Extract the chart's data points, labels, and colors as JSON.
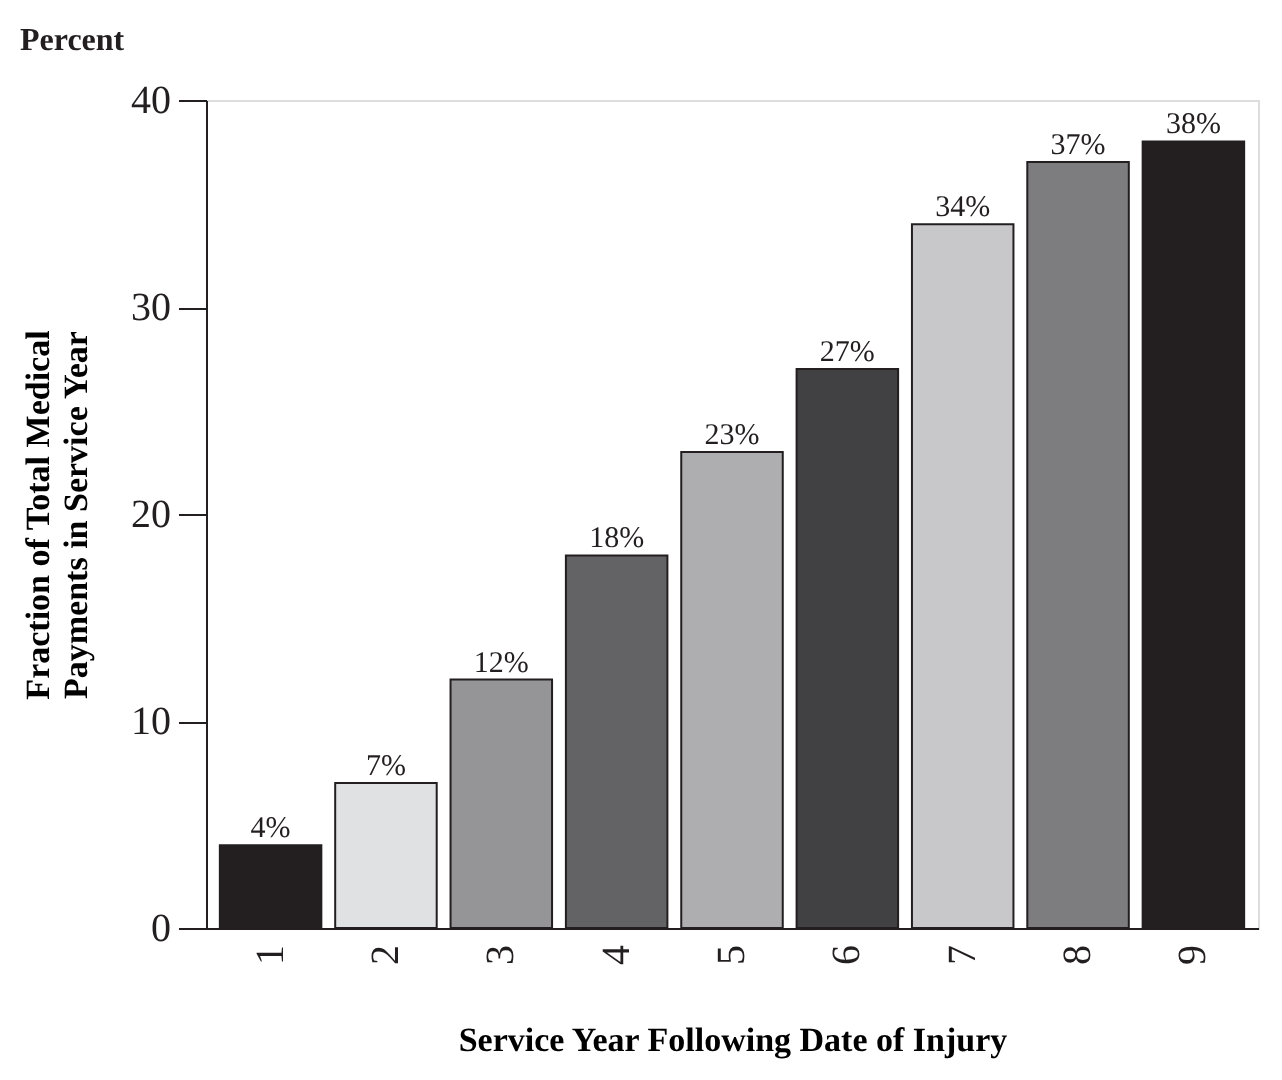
{
  "chart_data": {
    "type": "bar",
    "title": "Percent",
    "xlabel": "Service Year Following Date of Injury",
    "ylabel": "Fraction of Total Medical\nPayments in Service Year",
    "categories": [
      "1",
      "2",
      "3",
      "4",
      "5",
      "6",
      "7",
      "8",
      "9"
    ],
    "values": [
      4,
      7,
      12,
      18,
      23,
      27,
      34,
      37,
      38
    ],
    "value_labels": [
      "4%",
      "7%",
      "12%",
      "18%",
      "23%",
      "27%",
      "34%",
      "37%",
      "38%"
    ],
    "colors": [
      "#231f20",
      "#e0e1e3",
      "#959597",
      "#636365",
      "#aeaeb0",
      "#414143",
      "#c8c8ca",
      "#7d7d80",
      "#231f20"
    ],
    "ylim": [
      0,
      40
    ],
    "yticks": [
      0,
      10,
      20,
      30,
      40
    ],
    "grid": false,
    "legend": false
  }
}
